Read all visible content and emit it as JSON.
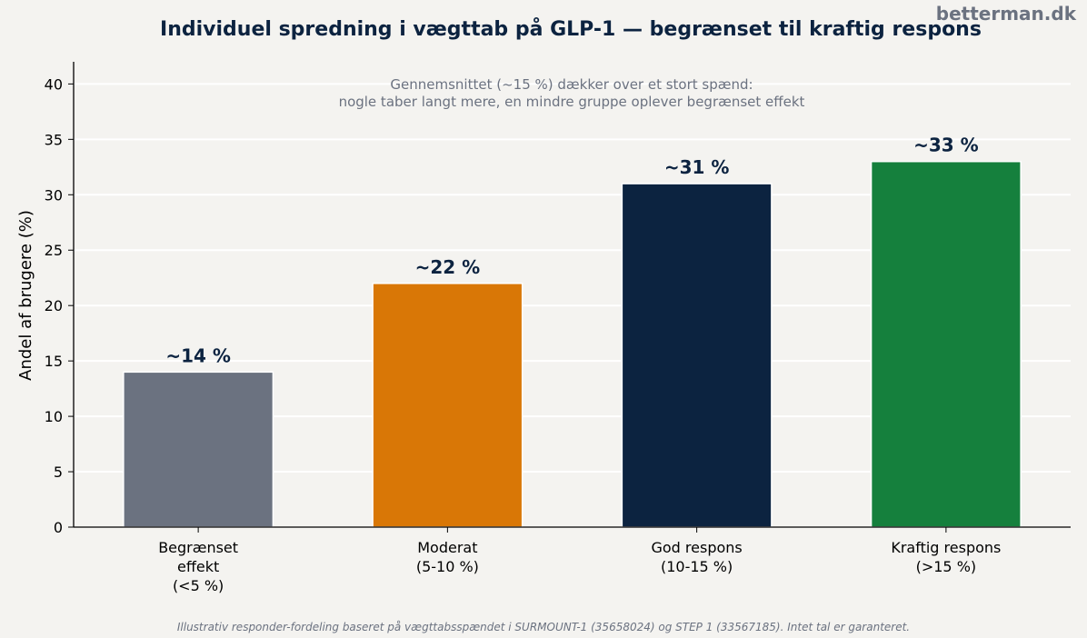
{
  "chart_data": {
    "type": "bar",
    "title": "Individuel spredning i vægttab på GLP-1 — begrænset til kraftig respons",
    "annotation": [
      "Gennemsnittet (~15 %) dækker over et stort spænd:",
      "nogle taber langt mere, en mindre gruppe oplever begrænset effekt"
    ],
    "xlabel": "",
    "ylabel": "Andel af brugere (%)",
    "ylim": [
      0,
      42
    ],
    "yticks": [
      0,
      5,
      10,
      15,
      20,
      25,
      30,
      35,
      40
    ],
    "grid": "horizontal",
    "categories": [
      [
        "Begrænset",
        "effekt",
        "(<5 %)"
      ],
      [
        "Moderat",
        "(5-10 %)"
      ],
      [
        "God respons",
        "(10-15 %)"
      ],
      [
        "Kraftig respons",
        "(>15 %)"
      ]
    ],
    "values": [
      14,
      22,
      31,
      33
    ],
    "value_labels": [
      "~14 %",
      "~22 %",
      "~31 %",
      "~33 %"
    ],
    "colors": [
      "#6b7280",
      "#d97706",
      "#0c2340",
      "#15803d"
    ],
    "footnote": "Illustrativ responder-fordeling baseret på vægttabsspændet i SURMOUNT-1 (35658024) og STEP 1 (33567185). Intet tal er garanteret.",
    "watermark": "betterman.dk"
  }
}
